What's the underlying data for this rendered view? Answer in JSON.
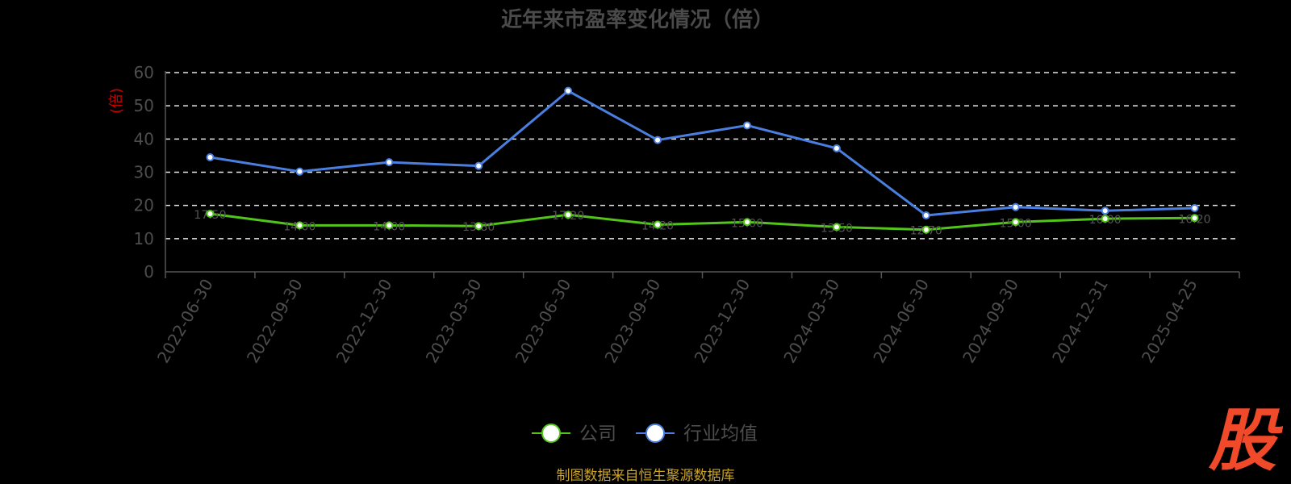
{
  "header": {
    "title": "近年来市盈率变化情况（倍）"
  },
  "axis": {
    "y_unit": "(倍)"
  },
  "legend": {
    "items": [
      {
        "label": "公司",
        "color": "#52c41a"
      },
      {
        "label": "行业均值",
        "color": "#4a7fe0"
      }
    ]
  },
  "footer": {
    "source": "制图数据来自恒生聚源数据库",
    "logo_text": "股"
  },
  "chart_data": {
    "type": "line",
    "title": "近年来市盈率变化情况（倍）",
    "ylabel": "(倍)",
    "ylim": [
      0,
      60
    ],
    "yticks": [
      0,
      10,
      20,
      30,
      40,
      50,
      60
    ],
    "grid": true,
    "legend_position": "bottom",
    "categories": [
      "2022-06-30",
      "2022-09-30",
      "2022-12-30",
      "2023-03-30",
      "2023-06-30",
      "2023-09-30",
      "2023-12-30",
      "2024-03-30",
      "2024-06-30",
      "2024-09-30",
      "2024-12-31",
      "2025-04-25"
    ],
    "series": [
      {
        "name": "公司",
        "color": "#52c41a",
        "values": [
          17.5,
          14.0,
          14.0,
          13.8,
          17.2,
          14.2,
          15.0,
          13.5,
          12.7,
          15.0,
          16.0,
          16.2
        ]
      },
      {
        "name": "行业均值",
        "color": "#4a7fe0",
        "values": [
          34.5,
          30.2,
          33.0,
          31.9,
          54.5,
          39.7,
          44.1,
          37.2,
          17.0,
          19.5,
          18.4,
          19.2
        ]
      }
    ]
  }
}
